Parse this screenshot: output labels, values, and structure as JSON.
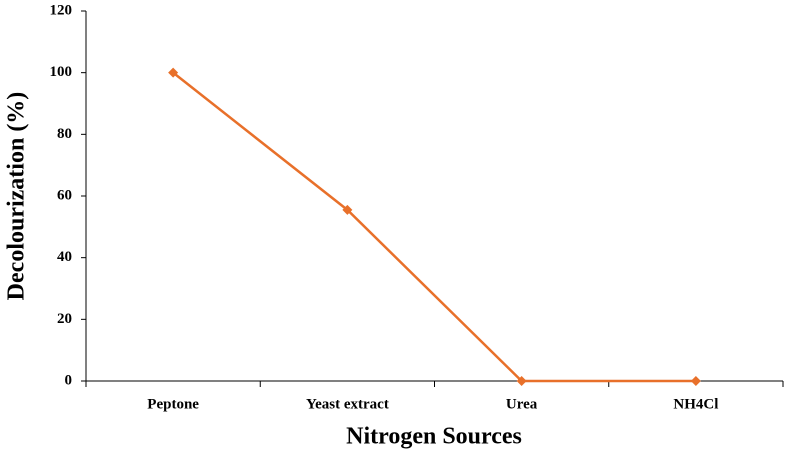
{
  "chart_data": {
    "type": "line",
    "x_label": "Nitrogen Sources",
    "y_label": "Decolourization (%)",
    "categories": [
      "Peptone",
      "Yeast extract",
      "Urea",
      "NH4Cl"
    ],
    "series": [
      {
        "name": "Decolourization",
        "color": "#e8702a",
        "values": [
          100,
          55.5,
          0,
          0
        ]
      }
    ],
    "ylim": [
      0,
      120
    ],
    "yticks": [
      0,
      20,
      40,
      60,
      80,
      100,
      120
    ]
  }
}
